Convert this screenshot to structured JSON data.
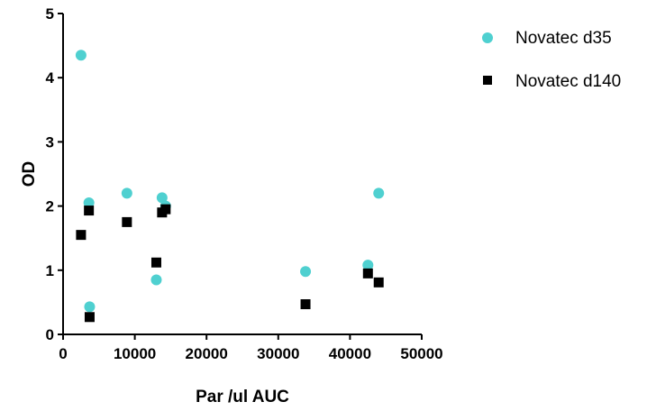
{
  "chart_data": {
    "type": "scatter",
    "title": "",
    "xlabel": "Par /ul AUC",
    "ylabel": "OD",
    "xlim": [
      0,
      50000
    ],
    "ylim": [
      0,
      5
    ],
    "xticks": [
      "0",
      "10000",
      "20000",
      "30000",
      "40000",
      "50000"
    ],
    "yticks": [
      "0",
      "1",
      "2",
      "3",
      "4",
      "5"
    ],
    "xtick_values": [
      0,
      10000,
      20000,
      30000,
      40000,
      50000
    ],
    "ytick_values": [
      0,
      1,
      2,
      3,
      4,
      5
    ],
    "grid": false,
    "legend_position": "top-right",
    "series": [
      {
        "name": "Novatec d35",
        "marker": "circle",
        "color": "#4fd0d0",
        "points": [
          {
            "x": 2500,
            "y": 4.35
          },
          {
            "x": 3600,
            "y": 2.05
          },
          {
            "x": 3700,
            "y": 0.43
          },
          {
            "x": 8900,
            "y": 2.2
          },
          {
            "x": 13000,
            "y": 0.85
          },
          {
            "x": 13800,
            "y": 2.13
          },
          {
            "x": 14300,
            "y": 2.0
          },
          {
            "x": 33800,
            "y": 0.98
          },
          {
            "x": 42500,
            "y": 1.08
          },
          {
            "x": 44000,
            "y": 2.2
          }
        ]
      },
      {
        "name": "Novatec d140",
        "marker": "square",
        "color": "#000000",
        "points": [
          {
            "x": 2500,
            "y": 1.55
          },
          {
            "x": 3600,
            "y": 1.93
          },
          {
            "x": 3700,
            "y": 0.27
          },
          {
            "x": 8900,
            "y": 1.75
          },
          {
            "x": 13000,
            "y": 1.12
          },
          {
            "x": 13800,
            "y": 1.9
          },
          {
            "x": 14300,
            "y": 1.95
          },
          {
            "x": 33800,
            "y": 0.47
          },
          {
            "x": 42500,
            "y": 0.95
          },
          {
            "x": 44000,
            "y": 0.81
          }
        ]
      }
    ]
  }
}
